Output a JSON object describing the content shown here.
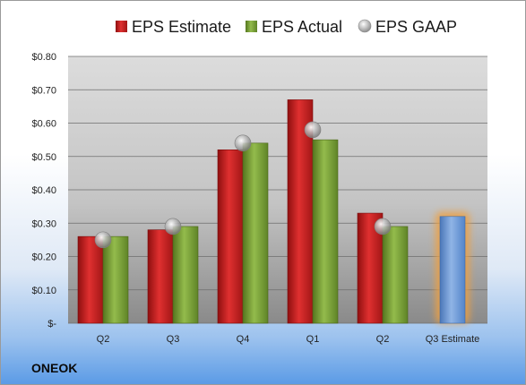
{
  "company": "ONEOK",
  "colors": {
    "estimate": "#cc1f1f",
    "actual": "#7ea43a",
    "gaap": "#b0b0b0",
    "forecast": "#6f9ad6",
    "forecast_glow": "#f0a040"
  },
  "chart_data": {
    "type": "bar",
    "categories": [
      "Q2",
      "Q3",
      "Q4",
      "Q1",
      "Q2",
      "Q3 Estimate"
    ],
    "series": [
      {
        "name": "EPS Estimate",
        "values": [
          0.26,
          0.28,
          0.52,
          0.67,
          0.33,
          null
        ]
      },
      {
        "name": "EPS Actual",
        "values": [
          0.26,
          0.29,
          0.54,
          0.55,
          0.29,
          0.32
        ]
      },
      {
        "name": "EPS GAAP",
        "values": [
          0.25,
          0.29,
          0.54,
          0.58,
          0.29,
          null
        ]
      }
    ],
    "ylim": [
      0,
      0.8
    ],
    "yticks": [
      0,
      0.1,
      0.2,
      0.3,
      0.4,
      0.5,
      0.6,
      0.7,
      0.8
    ],
    "ytick_labels": [
      "$-",
      "$0.10",
      "$0.20",
      "$0.30",
      "$0.40",
      "$0.50",
      "$0.60",
      "$0.70",
      "$0.80"
    ],
    "legend_position": "top",
    "grid": true
  }
}
